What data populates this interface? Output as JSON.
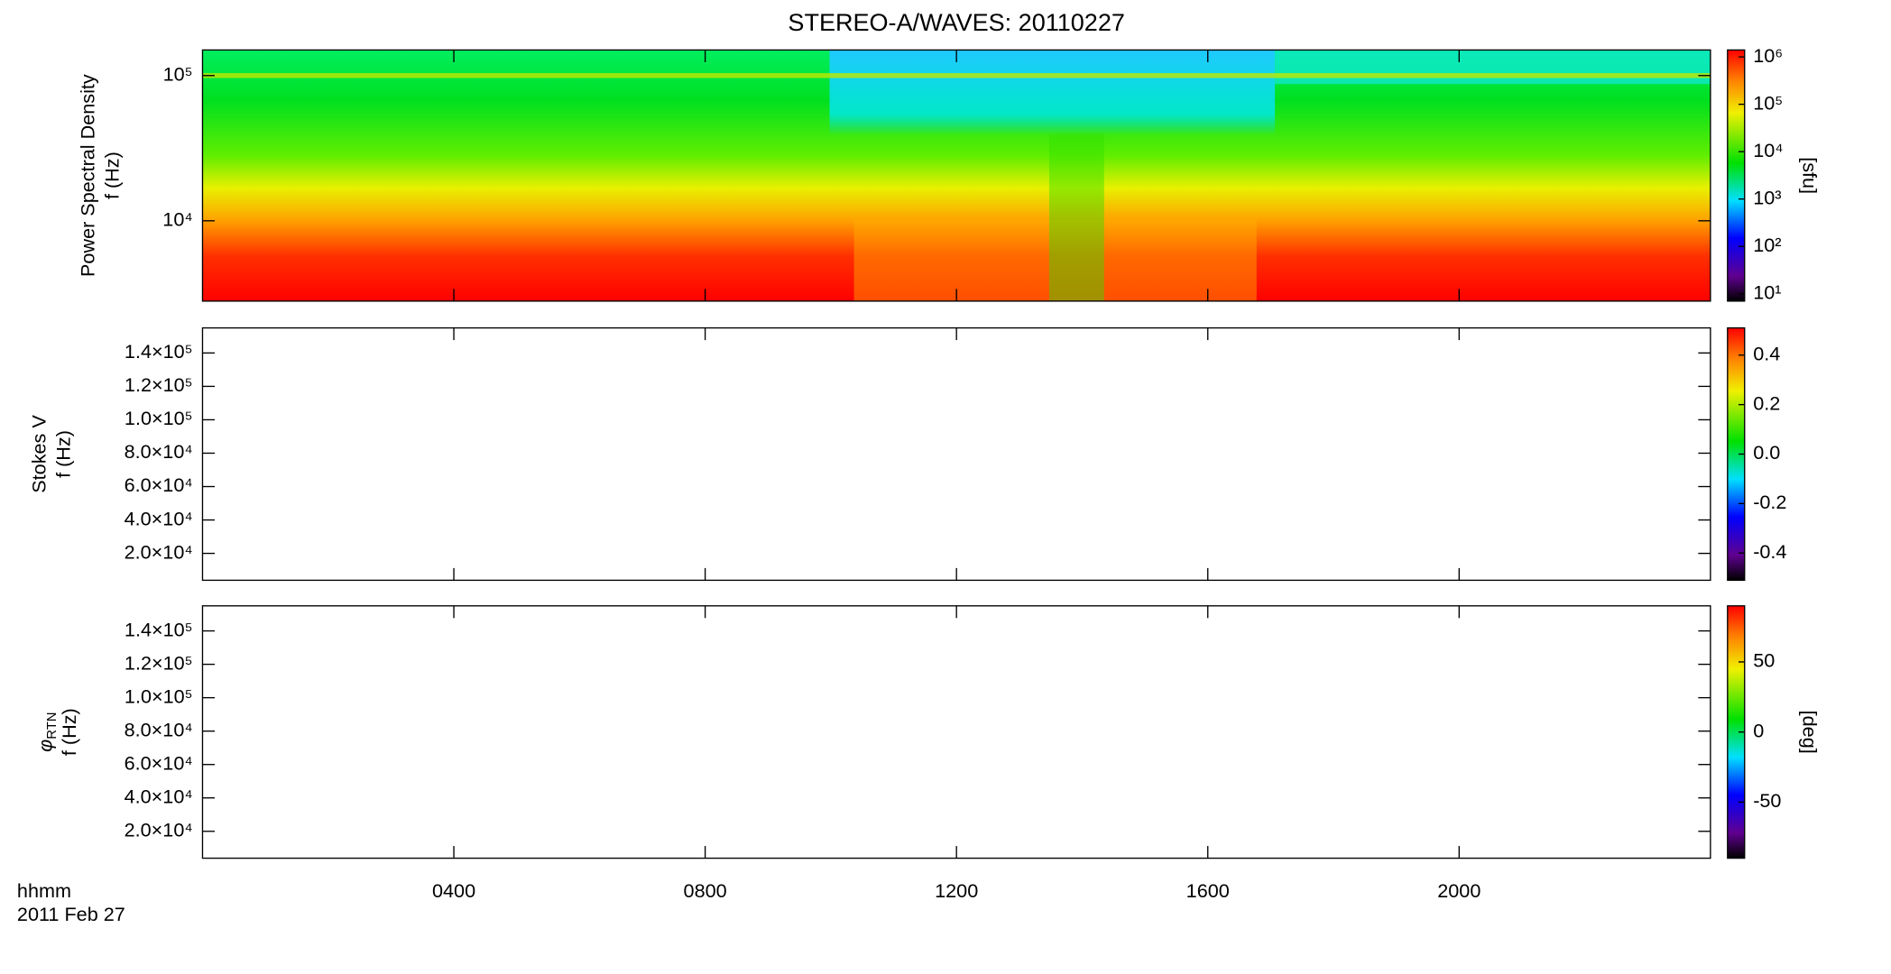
{
  "title": "STEREO-A/WAVES: 20110227",
  "chart_data": [
    {
      "type": "heatmap",
      "quantity": "Power Spectral Density",
      "ylabel": "f (Hz)",
      "ylog": true,
      "ylim": [
        2800,
        150000
      ],
      "yticks": [
        {
          "value": 10000,
          "label": "10⁴"
        },
        {
          "value": 100000,
          "label": "10⁵"
        }
      ],
      "xlim": [
        0,
        24
      ],
      "xticks": [
        {
          "value": 4,
          "label": "0400"
        },
        {
          "value": 8,
          "label": "0800"
        },
        {
          "value": 12,
          "label": "1200"
        },
        {
          "value": 16,
          "label": "1600"
        },
        {
          "value": 20,
          "label": "2000"
        }
      ],
      "colorbar": {
        "log": true,
        "lim": [
          7,
          1400000
        ],
        "label": "[sfu]",
        "ticks": [
          {
            "value": 10,
            "label": "10¹"
          },
          {
            "value": 100,
            "label": "10²"
          },
          {
            "value": 1000,
            "label": "10³"
          },
          {
            "value": 10000,
            "label": "10⁴"
          },
          {
            "value": 100000,
            "label": "10⁵"
          },
          {
            "value": 1000000,
            "label": "10⁶"
          }
        ]
      }
    },
    {
      "type": "heatmap",
      "quantity": "Stokes V",
      "ylabel": "f (Hz)",
      "ylog": false,
      "ylim": [
        3900,
        155000
      ],
      "yticks": [
        {
          "value": 20000,
          "label": "2.0×10⁴"
        },
        {
          "value": 40000,
          "label": "4.0×10⁴"
        },
        {
          "value": 60000,
          "label": "6.0×10⁴"
        },
        {
          "value": 80000,
          "label": "8.0×10⁴"
        },
        {
          "value": 100000,
          "label": "1.0×10⁵"
        },
        {
          "value": 120000,
          "label": "1.2×10⁵"
        },
        {
          "value": 140000,
          "label": "1.4×10⁵"
        }
      ],
      "xlim": [
        0,
        24
      ],
      "xticks": [
        {
          "value": 4,
          "label": "0400"
        },
        {
          "value": 8,
          "label": "0800"
        },
        {
          "value": 12,
          "label": "1200"
        },
        {
          "value": 16,
          "label": "1600"
        },
        {
          "value": 20,
          "label": "2000"
        }
      ],
      "colorbar": {
        "log": false,
        "lim": [
          -0.51,
          0.51
        ],
        "ticks": [
          -0.4,
          -0.2,
          {
            "value": 0,
            "label": "0.0"
          },
          0.2,
          0.4
        ]
      }
    },
    {
      "type": "heatmap",
      "quantity": "φ",
      "quantity_sub": "RTN",
      "ylabel": "f (Hz)",
      "ylog": false,
      "ylim": [
        3900,
        155000
      ],
      "yticks": [
        {
          "value": 20000,
          "label": "2.0×10⁴"
        },
        {
          "value": 40000,
          "label": "4.0×10⁴"
        },
        {
          "value": 60000,
          "label": "6.0×10⁴"
        },
        {
          "value": 80000,
          "label": "8.0×10⁴"
        },
        {
          "value": 100000,
          "label": "1.0×10⁵"
        },
        {
          "value": 120000,
          "label": "1.2×10⁵"
        },
        {
          "value": 140000,
          "label": "1.4×10⁵"
        }
      ],
      "xlim": [
        0,
        24
      ],
      "xticks": [
        {
          "value": 4,
          "label": "0400"
        },
        {
          "value": 8,
          "label": "0800"
        },
        {
          "value": 12,
          "label": "1200"
        },
        {
          "value": 16,
          "label": "1600"
        },
        {
          "value": 20,
          "label": "2000"
        }
      ],
      "xlabel": "hhmm",
      "x_sublabel": "2011 Feb 27",
      "colorbar": {
        "log": false,
        "lim": [
          -90,
          90
        ],
        "label": "[deg]",
        "ticks": [
          -50,
          0,
          50
        ]
      }
    }
  ]
}
